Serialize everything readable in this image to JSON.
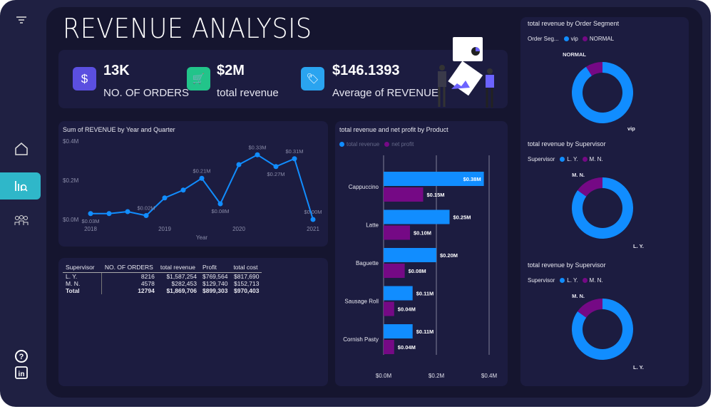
{
  "header": {
    "title": "REVENUE ANALYSIS"
  },
  "sidebar": {
    "icons": [
      "filter-icon",
      "home-icon",
      "report-icon",
      "people-icon",
      "help-icon",
      "linkedin-icon"
    ],
    "active": "report-icon"
  },
  "kpis": [
    {
      "value": "13K",
      "label": "NO. OF ORDERS",
      "icon": "dollar-icon",
      "color": "#5b4fe0",
      "glyph": "$"
    },
    {
      "value": "$2M",
      "label": "total revenue",
      "icon": "cart-icon",
      "color": "#22c48a",
      "glyph": "🛒"
    },
    {
      "value": "$146.1393",
      "label": "Average of REVENUE",
      "icon": "price-tag-icon",
      "color": "#2aa4f0",
      "glyph": "🏷"
    }
  ],
  "colors": {
    "blue": "#118dff",
    "purple": "#750985"
  },
  "chart_data": [
    {
      "type": "line",
      "title": "Sum of REVENUE by Year and Quarter",
      "xlabel": "Year",
      "ylabel": "",
      "x_ticks": [
        "2018",
        "2019",
        "2020",
        "2021"
      ],
      "y_ticks": [
        "$0.0M",
        "$0.2M",
        "$0.4M"
      ],
      "ylim": [
        0,
        0.4
      ],
      "values": [
        0.03,
        0.03,
        0.04,
        0.02,
        0.11,
        0.15,
        0.21,
        0.08,
        0.28,
        0.33,
        0.27,
        0.31,
        0.0
      ],
      "labels": [
        "$0.03M",
        "",
        "",
        "$0.02M",
        "",
        "",
        "$0.21M",
        "$0.08M",
        "",
        "$0.33M",
        "$0.27M",
        "$0.31M",
        "$0.00M"
      ]
    },
    {
      "type": "bar",
      "title": "total revenue and net profit by Product",
      "orientation": "horizontal",
      "categories": [
        "Cappuccino",
        "Latte",
        "Baguette",
        "Sausage Roll",
        "Cornish Pasty"
      ],
      "series": [
        {
          "name": "total revenue",
          "values": [
            0.38,
            0.25,
            0.2,
            0.11,
            0.11
          ],
          "labels": [
            "$0.38M",
            "$0.25M",
            "$0.20M",
            "$0.11M",
            "$0.11M"
          ]
        },
        {
          "name": "net profit",
          "values": [
            0.15,
            0.1,
            0.08,
            0.04,
            0.04
          ],
          "labels": [
            "$0.15M",
            "$0.10M",
            "$0.08M",
            "$0.04M",
            "$0.04M"
          ]
        }
      ],
      "x_ticks": [
        "$0.0M",
        "$0.2M",
        "$0.4M"
      ],
      "xlim": [
        0,
        0.4
      ],
      "grid": true,
      "legend": "top-left"
    },
    {
      "type": "pie",
      "donut": true,
      "title": "total revenue by Order Segment",
      "legend_title": "Order Seg...",
      "slices": [
        {
          "name": "vip",
          "value": 91
        },
        {
          "name": "NORMAL",
          "value": 9
        }
      ]
    },
    {
      "type": "pie",
      "donut": true,
      "title": "total revenue by Supervisor",
      "legend_title": "Supervisor",
      "slices": [
        {
          "name": "L. Y.",
          "value": 1587254
        },
        {
          "name": "M. N.",
          "value": 282453
        }
      ]
    },
    {
      "type": "pie",
      "donut": true,
      "title": "total revenue by Supervisor",
      "legend_title": "Supervisor",
      "slices": [
        {
          "name": "L. Y.",
          "value": 1587254
        },
        {
          "name": "M. N.",
          "value": 282453
        }
      ]
    }
  ],
  "table": {
    "columns": [
      "Supervisor",
      "NO. OF ORDERS",
      "total revenue",
      "Profit",
      "total cost"
    ],
    "sorted_column": "Profit",
    "rows": [
      [
        "L. Y.",
        "8216",
        "$1,587,254",
        "$769,564",
        "$817,690"
      ],
      [
        "M. N.",
        "4578",
        "$282,453",
        "$129,740",
        "$152,713"
      ]
    ],
    "total": [
      "Total",
      "12794",
      "$1,869,706",
      "$899,303",
      "$970,403"
    ]
  }
}
